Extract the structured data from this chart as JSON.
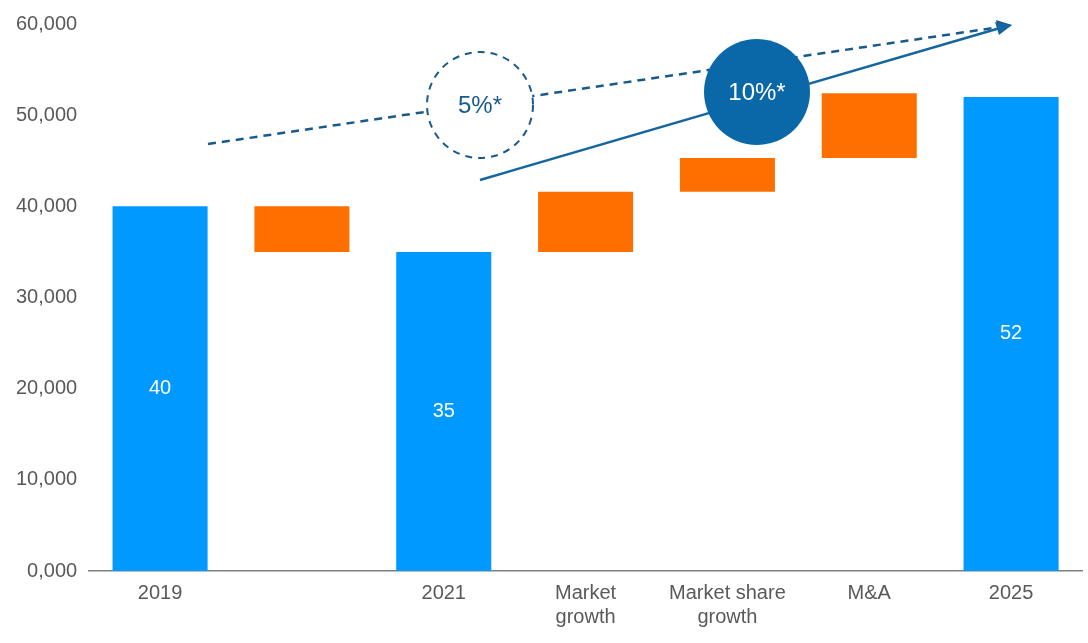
{
  "chart_data": {
    "type": "bar",
    "categories": [
      "2019",
      null,
      "2021",
      "Market growth",
      "Market share growth",
      "M&A",
      "2025"
    ],
    "values": [
      40000,
      5000,
      35000,
      6600,
      3700,
      7100,
      52000
    ],
    "base": [
      null,
      35000,
      null,
      35000,
      41600,
      45300,
      null
    ],
    "colors": [
      "#0099ff",
      "#ff6f00",
      "#0099ff",
      "#ff6f00",
      "#ff6f00",
      "#ff6f00",
      "#0099ff"
    ],
    "ylim": [
      0,
      60000
    ],
    "yticks": [
      {
        "value": 0,
        "label": "0,000"
      },
      {
        "value": 10000,
        "label": "10,000"
      },
      {
        "value": 20000,
        "label": "20,000"
      },
      {
        "value": 30000,
        "label": "30,000"
      },
      {
        "value": 40000,
        "label": "40,000"
      },
      {
        "value": 50000,
        "label": "50,000"
      },
      {
        "value": 60000,
        "label": "60,000"
      }
    ],
    "grid": false,
    "annotations": [
      "5%*",
      "10%*",
      "40",
      "35",
      "52"
    ]
  }
}
